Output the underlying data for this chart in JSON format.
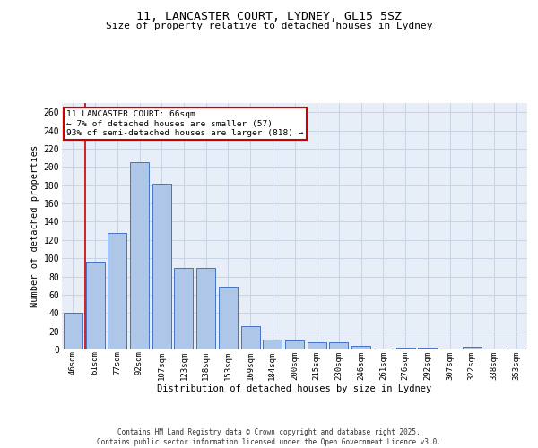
{
  "title_line1": "11, LANCASTER COURT, LYDNEY, GL15 5SZ",
  "title_line2": "Size of property relative to detached houses in Lydney",
  "xlabel": "Distribution of detached houses by size in Lydney",
  "ylabel": "Number of detached properties",
  "categories": [
    "46sqm",
    "61sqm",
    "77sqm",
    "92sqm",
    "107sqm",
    "123sqm",
    "138sqm",
    "153sqm",
    "169sqm",
    "184sqm",
    "200sqm",
    "215sqm",
    "230sqm",
    "246sqm",
    "261sqm",
    "276sqm",
    "292sqm",
    "307sqm",
    "322sqm",
    "338sqm",
    "353sqm"
  ],
  "values": [
    40,
    96,
    128,
    205,
    182,
    89,
    89,
    69,
    26,
    11,
    10,
    8,
    8,
    4,
    1,
    2,
    2,
    1,
    3,
    1,
    1
  ],
  "bar_color": "#aec6e8",
  "bar_edge_color": "#4472c4",
  "red_line_x": 1,
  "annotation_text": "11 LANCASTER COURT: 66sqm\n← 7% of detached houses are smaller (57)\n93% of semi-detached houses are larger (818) →",
  "annotation_box_color": "#ffffff",
  "annotation_box_edge": "#cc0000",
  "grid_color": "#c8d4e4",
  "bg_color": "#e8eef8",
  "ylim": [
    0,
    270
  ],
  "yticks": [
    0,
    20,
    40,
    60,
    80,
    100,
    120,
    140,
    160,
    180,
    200,
    220,
    240,
    260
  ],
  "footer": "Contains HM Land Registry data © Crown copyright and database right 2025.\nContains public sector information licensed under the Open Government Licence v3.0.",
  "red_line_color": "#cc0000"
}
